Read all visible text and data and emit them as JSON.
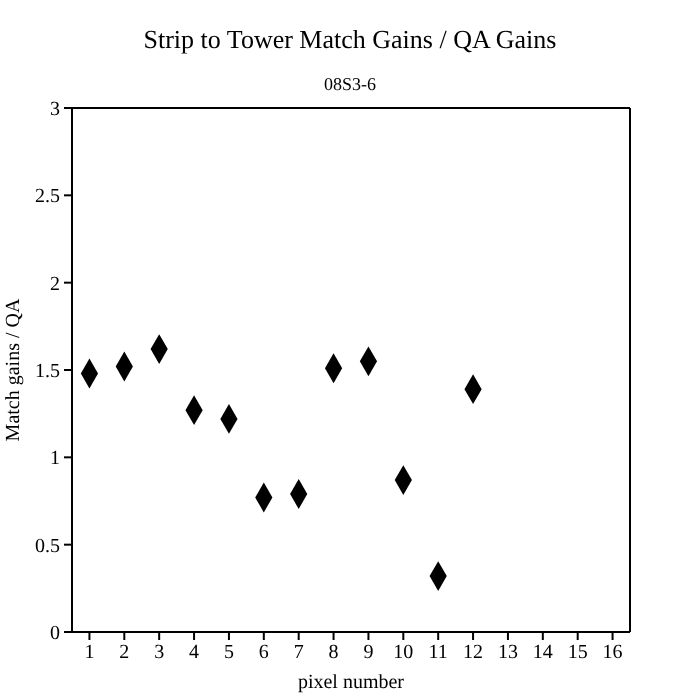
{
  "chart_data": {
    "type": "scatter",
    "title": "Strip to Tower Match Gains / QA Gains",
    "subtitle": "08S3-6",
    "xlabel": "pixel number",
    "ylabel": "Match gains / QA",
    "x": [
      1,
      2,
      3,
      4,
      5,
      6,
      7,
      8,
      9,
      10,
      11,
      12
    ],
    "values": [
      1.48,
      1.52,
      1.62,
      1.27,
      1.22,
      0.77,
      0.79,
      1.51,
      1.55,
      0.87,
      0.32,
      1.39
    ],
    "color": "#000000",
    "marker": "diamond",
    "xlim": [
      0.5,
      16.5
    ],
    "xticks": [
      1,
      2,
      3,
      4,
      5,
      6,
      7,
      8,
      9,
      10,
      11,
      12,
      13,
      14,
      15,
      16
    ],
    "ylim": [
      0,
      3
    ],
    "yticks": [
      0,
      0.5,
      1,
      1.5,
      2,
      2.5,
      3
    ],
    "grid": false
  }
}
